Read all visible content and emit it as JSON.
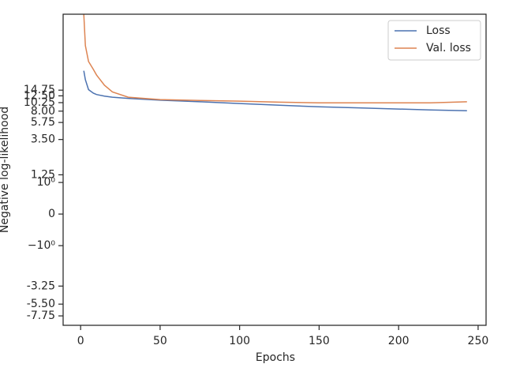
{
  "chart_data": {
    "type": "line",
    "xlabel": "Epochs",
    "ylabel": "Negative log-likelihood",
    "x": [
      2,
      3,
      5,
      8,
      10,
      15,
      20,
      30,
      50,
      75,
      100,
      125,
      150,
      175,
      200,
      220,
      243
    ],
    "series": [
      {
        "name": "Loss",
        "color": "#4c72b0",
        "values": [
          26,
          20,
          15,
          13.5,
          13,
          12.4,
          12,
          11.6,
          11,
          10.5,
          10,
          9.5,
          9.1,
          8.8,
          8.5,
          8.3,
          8.1
        ]
      },
      {
        "name": "Val. loss",
        "color": "#dd8452",
        "values": [
          135,
          54,
          34,
          27,
          23,
          17,
          14,
          12,
          11.2,
          10.9,
          10.7,
          10.4,
          10.2,
          10.2,
          10.2,
          10.2,
          10.5
        ]
      }
    ],
    "xlim": [
      -11,
      255
    ],
    "xticks": [
      0,
      50,
      100,
      150,
      200,
      250
    ],
    "ylim": [
      -10.2,
      135
    ],
    "yscale": "symlog",
    "linthresh": 1,
    "yticks": [
      {
        "value": -7.75,
        "label": "-7.75"
      },
      {
        "value": -5.5,
        "label": "-5.50"
      },
      {
        "value": -3.25,
        "label": "-3.25"
      },
      {
        "value": -1,
        "label": "−10⁰"
      },
      0,
      {
        "value": 1,
        "label": "10⁰"
      },
      1.25,
      {
        "value": 3.5,
        "label": "3.50"
      },
      5.75,
      {
        "value": 8,
        "label": "8.00"
      },
      10.25,
      {
        "value": 12.5,
        "label": "12.50"
      },
      14.75
    ],
    "legend": "upper right"
  }
}
